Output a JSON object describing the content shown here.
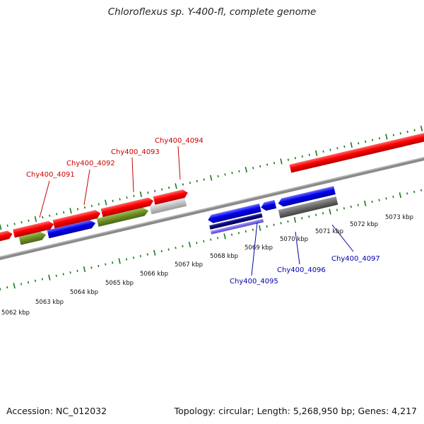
{
  "title": "Chloroflexus sp. Y-400-fl, complete genome",
  "accession": "Accession: NC_012032",
  "topology": "Topology: circular; Length: 5,268,950 bp; Genes: 4,217",
  "colors": {
    "backbone": "#8a8a8a",
    "ticks": "#1a7a1a",
    "label_top": "#cc0000",
    "label_bottom": "#0000aa"
  },
  "scale_labels": [
    "5062 kbp",
    "5063 kbp",
    "5064 kbp",
    "5065 kbp",
    "5066 kbp",
    "5067 kbp",
    "5068 kbp",
    "5069 kbp",
    "5070 kbp",
    "5071 kbp",
    "5072 kbp",
    "5073 kbp"
  ],
  "gene_labels_top": [
    "Chy400_4091",
    "Chy400_4092",
    "Chy400_4093",
    "Chy400_4094"
  ],
  "gene_labels_bottom": [
    "Chy400_4095",
    "Chy400_4096",
    "Chy400_4097"
  ]
}
